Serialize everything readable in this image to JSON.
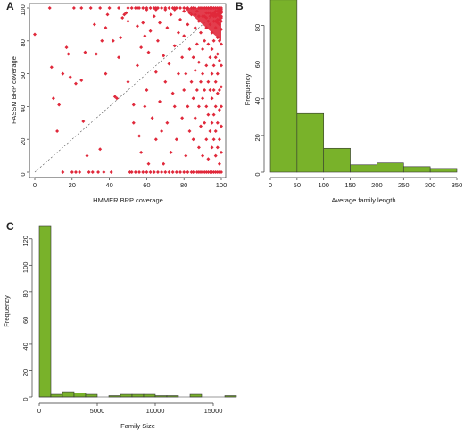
{
  "chart_data": [
    {
      "panel": "A",
      "type": "scatter",
      "xlabel": "HMMER BRP coverage",
      "ylabel": "FASSM BRP coverage",
      "xlim": [
        0,
        100
      ],
      "ylim": [
        0,
        100
      ],
      "xticks": [
        0,
        20,
        40,
        60,
        80,
        100
      ],
      "yticks": [
        0,
        20,
        40,
        60,
        80,
        100
      ],
      "diagonal_line": true,
      "color": "#e0283a",
      "points": [
        [
          0,
          84
        ],
        [
          8,
          100
        ],
        [
          9,
          64
        ],
        [
          10,
          45
        ],
        [
          12,
          25
        ],
        [
          13,
          41
        ],
        [
          15,
          0
        ],
        [
          15,
          60
        ],
        [
          17,
          76
        ],
        [
          18,
          72
        ],
        [
          19,
          58
        ],
        [
          20,
          0
        ],
        [
          21,
          100
        ],
        [
          22,
          0
        ],
        [
          22,
          54
        ],
        [
          24,
          0
        ],
        [
          25,
          100
        ],
        [
          25,
          56
        ],
        [
          26,
          31
        ],
        [
          27,
          73
        ],
        [
          28,
          10
        ],
        [
          29,
          0
        ],
        [
          30,
          100
        ],
        [
          31,
          0
        ],
        [
          32,
          90
        ],
        [
          33,
          72
        ],
        [
          34,
          0
        ],
        [
          35,
          100
        ],
        [
          35,
          14
        ],
        [
          36,
          80
        ],
        [
          37,
          0
        ],
        [
          38,
          60
        ],
        [
          38,
          88
        ],
        [
          39,
          96
        ],
        [
          40,
          100
        ],
        [
          41,
          0
        ],
        [
          42,
          80
        ],
        [
          43,
          46
        ],
        [
          44,
          45
        ],
        [
          45,
          100
        ],
        [
          45,
          70
        ],
        [
          46,
          82
        ],
        [
          47,
          94
        ],
        [
          48,
          96
        ],
        [
          49,
          97
        ],
        [
          50,
          100
        ],
        [
          50,
          92
        ],
        [
          50,
          55
        ],
        [
          51,
          0
        ],
        [
          52,
          0
        ],
        [
          53,
          41
        ],
        [
          53,
          30
        ],
        [
          54,
          0
        ],
        [
          55,
          100
        ],
        [
          55,
          65
        ],
        [
          55,
          89
        ],
        [
          56,
          22
        ],
        [
          56,
          0
        ],
        [
          57,
          76
        ],
        [
          57,
          12
        ],
        [
          58,
          91
        ],
        [
          58,
          0
        ],
        [
          59,
          83
        ],
        [
          59,
          40
        ],
        [
          60,
          100
        ],
        [
          60,
          0
        ],
        [
          60,
          50
        ],
        [
          61,
          5
        ],
        [
          61,
          73
        ],
        [
          62,
          0
        ],
        [
          62,
          86
        ],
        [
          63,
          33
        ],
        [
          64,
          95
        ],
        [
          64,
          0
        ],
        [
          65,
          100
        ],
        [
          65,
          61
        ],
        [
          65,
          20
        ],
        [
          66,
          0
        ],
        [
          66,
          80
        ],
        [
          67,
          43
        ],
        [
          67,
          91
        ],
        [
          68,
          0
        ],
        [
          68,
          25
        ],
        [
          69,
          71
        ],
        [
          69,
          5
        ],
        [
          70,
          100
        ],
        [
          70,
          55
        ],
        [
          70,
          0
        ],
        [
          71,
          88
        ],
        [
          71,
          30
        ],
        [
          72,
          0
        ],
        [
          72,
          66
        ],
        [
          73,
          96
        ],
        [
          73,
          12
        ],
        [
          74,
          0
        ],
        [
          74,
          48
        ],
        [
          75,
          100
        ],
        [
          75,
          77
        ],
        [
          75,
          40
        ],
        [
          76,
          0
        ],
        [
          76,
          20
        ],
        [
          77,
          85
        ],
        [
          77,
          60
        ],
        [
          78,
          0
        ],
        [
          78,
          93
        ],
        [
          79,
          33
        ],
        [
          79,
          70
        ],
        [
          80,
          100
        ],
        [
          80,
          0
        ],
        [
          80,
          50
        ],
        [
          80,
          83
        ],
        [
          81,
          10
        ],
        [
          81,
          60
        ],
        [
          82,
          0
        ],
        [
          82,
          90
        ],
        [
          82,
          40
        ],
        [
          83,
          75
        ],
        [
          83,
          25
        ],
        [
          84,
          0
        ],
        [
          84,
          96
        ],
        [
          84,
          55
        ],
        [
          85,
          100
        ],
        [
          85,
          0
        ],
        [
          85,
          70
        ],
        [
          85,
          45
        ],
        [
          85,
          20
        ],
        [
          86,
          88
        ],
        [
          86,
          62
        ],
        [
          86,
          33
        ],
        [
          87,
          0
        ],
        [
          87,
          98
        ],
        [
          87,
          78
        ],
        [
          87,
          50
        ],
        [
          88,
          0
        ],
        [
          88,
          15
        ],
        [
          88,
          92
        ],
        [
          88,
          67
        ],
        [
          88,
          40
        ],
        [
          89,
          0
        ],
        [
          89,
          85
        ],
        [
          89,
          55
        ],
        [
          89,
          28
        ],
        [
          90,
          100
        ],
        [
          90,
          0
        ],
        [
          90,
          75
        ],
        [
          90,
          60
        ],
        [
          90,
          45
        ],
        [
          90,
          10
        ],
        [
          91,
          95
        ],
        [
          91,
          80
        ],
        [
          91,
          50
        ],
        [
          91,
          0
        ],
        [
          91,
          30
        ],
        [
          92,
          100
        ],
        [
          92,
          88
        ],
        [
          92,
          65
        ],
        [
          92,
          40
        ],
        [
          92,
          0
        ],
        [
          92,
          20
        ],
        [
          93,
          97
        ],
        [
          93,
          78
        ],
        [
          93,
          55
        ],
        [
          93,
          0
        ],
        [
          93,
          35
        ],
        [
          93,
          8
        ],
        [
          94,
          100
        ],
        [
          94,
          90
        ],
        [
          94,
          70
        ],
        [
          94,
          50
        ],
        [
          94,
          0
        ],
        [
          94,
          25
        ],
        [
          95,
          100
        ],
        [
          95,
          85
        ],
        [
          95,
          75
        ],
        [
          95,
          60
        ],
        [
          95,
          45
        ],
        [
          95,
          0
        ],
        [
          95,
          15
        ],
        [
          95,
          30
        ],
        [
          96,
          100
        ],
        [
          96,
          92
        ],
        [
          96,
          80
        ],
        [
          96,
          65
        ],
        [
          96,
          50
        ],
        [
          96,
          35
        ],
        [
          96,
          0
        ],
        [
          96,
          20
        ],
        [
          97,
          100
        ],
        [
          97,
          95
        ],
        [
          97,
          88
        ],
        [
          97,
          70
        ],
        [
          97,
          55
        ],
        [
          97,
          40
        ],
        [
          97,
          0
        ],
        [
          97,
          10
        ],
        [
          97,
          25
        ],
        [
          98,
          100
        ],
        [
          98,
          93
        ],
        [
          98,
          82
        ],
        [
          98,
          72
        ],
        [
          98,
          60
        ],
        [
          98,
          48
        ],
        [
          98,
          30
        ],
        [
          98,
          0
        ],
        [
          98,
          15
        ],
        [
          99,
          100
        ],
        [
          99,
          97
        ],
        [
          99,
          90
        ],
        [
          99,
          80
        ],
        [
          99,
          68
        ],
        [
          99,
          50
        ],
        [
          99,
          38
        ],
        [
          99,
          20
        ],
        [
          99,
          0
        ],
        [
          99,
          5
        ],
        [
          100,
          100
        ],
        [
          100,
          95
        ],
        [
          100,
          87
        ],
        [
          100,
          78
        ],
        [
          100,
          65
        ],
        [
          100,
          52
        ],
        [
          100,
          40
        ],
        [
          100,
          28
        ],
        [
          100,
          12
        ],
        [
          100,
          0
        ],
        [
          52,
          100
        ],
        [
          54,
          100
        ],
        [
          56,
          100
        ],
        [
          58,
          100
        ],
        [
          62,
          100
        ],
        [
          64,
          100
        ],
        [
          66,
          100
        ],
        [
          68,
          100
        ],
        [
          72,
          100
        ],
        [
          74,
          100
        ],
        [
          76,
          100
        ],
        [
          78,
          100
        ],
        [
          82,
          100
        ],
        [
          84,
          100
        ],
        [
          86,
          100
        ],
        [
          88,
          100
        ],
        [
          89,
          100
        ],
        [
          91,
          100
        ],
        [
          93,
          100
        ],
        [
          60,
          99
        ],
        [
          65,
          99
        ],
        [
          70,
          99
        ],
        [
          75,
          99
        ],
        [
          80,
          98
        ],
        [
          83,
          97
        ],
        [
          86,
          96
        ],
        [
          88,
          95
        ],
        [
          90,
          95
        ],
        [
          92,
          94
        ],
        [
          93,
          92
        ],
        [
          94,
          95
        ],
        [
          95,
          96
        ],
        [
          96,
          97
        ],
        [
          97,
          98
        ],
        [
          98,
          98
        ],
        [
          99,
          99
        ],
        [
          100,
          99
        ],
        [
          100,
          98
        ],
        [
          100,
          97
        ],
        [
          99,
          98
        ],
        [
          92,
          97
        ],
        [
          94,
          97
        ],
        [
          96,
          95
        ],
        [
          97,
          96
        ],
        [
          98,
          96
        ],
        [
          99,
          95
        ],
        [
          100,
          94
        ],
        [
          100,
          92
        ],
        [
          99,
          93
        ],
        [
          98,
          91
        ],
        [
          97,
          92
        ]
      ]
    },
    {
      "panel": "B",
      "type": "bar",
      "xlabel": "Average family length",
      "ylabel": "Frequency",
      "xlim": [
        0,
        350
      ],
      "ylim": [
        0,
        90
      ],
      "xticks": [
        0,
        50,
        100,
        150,
        200,
        250,
        300,
        350
      ],
      "yticks": [
        0,
        20,
        40,
        60,
        80
      ],
      "color": "#79b22a",
      "bins": [
        [
          0,
          50
        ],
        [
          50,
          100
        ],
        [
          100,
          150
        ],
        [
          150,
          200
        ],
        [
          200,
          250
        ],
        [
          250,
          300
        ],
        [
          300,
          350
        ]
      ],
      "values": [
        94,
        32,
        13,
        4,
        5,
        3,
        2
      ]
    },
    {
      "panel": "C",
      "type": "bar",
      "xlabel": "Family Size",
      "ylabel": "Frequency",
      "xlim": [
        0,
        17000
      ],
      "ylim": [
        0,
        130
      ],
      "xticks": [
        0,
        5000,
        10000,
        15000
      ],
      "yticks": [
        0,
        20,
        40,
        60,
        80,
        100,
        120
      ],
      "color": "#79b22a",
      "bin_width": 1000,
      "values": [
        130,
        2,
        4,
        3,
        2,
        0,
        1,
        2,
        2,
        2,
        1,
        1,
        0,
        2,
        0,
        0,
        1
      ]
    }
  ]
}
